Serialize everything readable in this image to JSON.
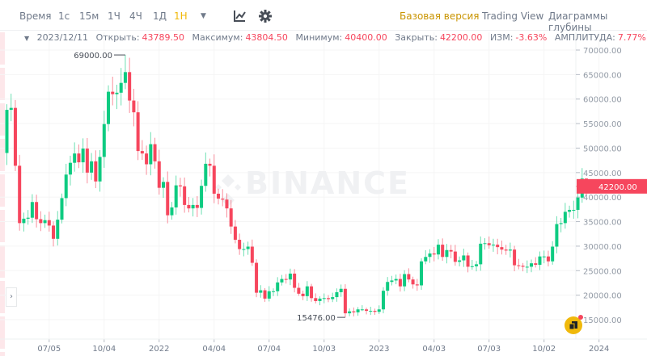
{
  "toolbar": {
    "intervals": [
      "Время",
      "1с",
      "15м",
      "1Ч",
      "4Ч",
      "1Д",
      "1Н"
    ],
    "active_interval": "1Н",
    "views": [
      "Базовая версия",
      "Trading View",
      "Диаграммы глубины"
    ],
    "active_view": "Базовая версия"
  },
  "info": {
    "date": "2023/12/11",
    "open_label": "Открыть:",
    "open": "43789.50",
    "high_label": "Максимум:",
    "high": "43804.50",
    "low_label": "Минимум:",
    "low": "40400.00",
    "close_label": "Закрыть:",
    "close": "42200.00",
    "change_label": "ИЗМ:",
    "change": "-3.63%",
    "amp_label": "АМПЛИТУДА:",
    "amp": "7.77%"
  },
  "watermark": "BINANCE",
  "colors": {
    "up": "#0ecb81",
    "down": "#f6465d",
    "accent": "#f0b90b"
  },
  "chart_data": {
    "type": "candlestick",
    "interval": "1W",
    "first_week": "2021-04-26",
    "price_ticks": [
      70000,
      65000,
      60000,
      55000,
      50000,
      45000,
      40000,
      35000,
      30000,
      25000,
      20000,
      15000
    ],
    "price_tick_labels": [
      "70000.00",
      "65000.00",
      "60000.00",
      "55000.00",
      "50000.00",
      "45000.00",
      "40000.00",
      "35000.00",
      "30000.00",
      "25000.00",
      "20000.00",
      "15000.00"
    ],
    "ylim": [
      11500,
      72500
    ],
    "x_ticks": [
      {
        "label": "07/05",
        "week": 10
      },
      {
        "label": "10/04",
        "week": 23
      },
      {
        "label": "2022",
        "week": 36
      },
      {
        "label": "04/04",
        "week": 49
      },
      {
        "label": "07/04",
        "week": 62
      },
      {
        "label": "10/03",
        "week": 75
      },
      {
        "label": "2023",
        "week": 88
      },
      {
        "label": "04/03",
        "week": 101
      },
      {
        "label": "07/03",
        "week": 114
      },
      {
        "label": "10/02",
        "week": 127
      },
      {
        "label": "2024",
        "week": 140
      }
    ],
    "first_open": 49000,
    "closes": [
      57800,
      58200,
      46400,
      34700,
      35600,
      35800,
      39000,
      35500,
      34700,
      35300,
      34200,
      31500,
      35400,
      39800,
      44600,
      47000,
      48900,
      47100,
      49900,
      45000,
      47300,
      43200,
      48200,
      54900,
      61500,
      61000,
      61300,
      63300,
      65500,
      59700,
      57300,
      49400,
      48900,
      46700,
      50800,
      47300,
      41900,
      43100,
      36300,
      37900,
      42400,
      42200,
      38400,
      37700,
      38400,
      37800,
      42300,
      46800,
      46400,
      40700,
      39700,
      39500,
      37700,
      34000,
      31300,
      29400,
      29400,
      29900,
      26600,
      20500,
      21000,
      19300,
      20800,
      20800,
      22600,
      23300,
      23200,
      24400,
      21500,
      20300,
      19800,
      21800,
      19400,
      18800,
      19300,
      19400,
      19200,
      19600,
      20600,
      21300,
      16300,
      16700,
      16500,
      17100,
      17100,
      16800,
      16800,
      16600,
      17100,
      20900,
      22700,
      23000,
      23300,
      21800,
      24300,
      23200,
      22200,
      22000,
      26900,
      27800,
      28500,
      28300,
      30300,
      27800,
      29200,
      28900,
      26800,
      27100,
      28100,
      25800,
      25900,
      26300,
      30500,
      30600,
      30200,
      30300,
      29800,
      29300,
      29100,
      29300,
      26100,
      26000,
      25800,
      25800,
      26500,
      26200,
      27900,
      27900,
      26900,
      29900,
      34500,
      34700,
      37000,
      37400,
      37400,
      39900,
      43789.5,
      42200
    ],
    "annotations": {
      "max": {
        "label": "69000.00",
        "value": 69000,
        "week": 28
      },
      "min": {
        "label": "15476.00",
        "value": 15476,
        "week": 80
      }
    },
    "last_candle": {
      "open": 43789.5,
      "high": 43804.5,
      "low": 40400,
      "close": 42200
    },
    "last_price_label": "42200.00"
  }
}
